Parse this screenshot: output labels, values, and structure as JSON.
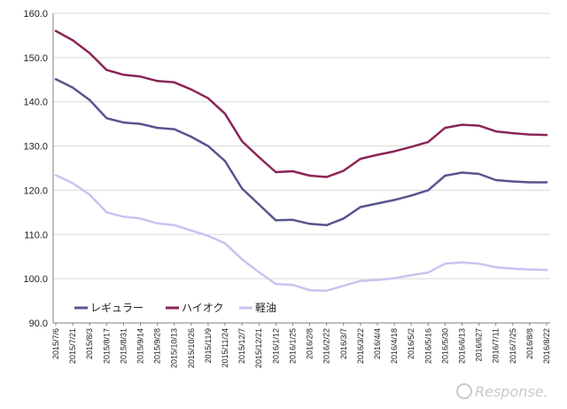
{
  "chart_data": {
    "type": "line",
    "title": "",
    "xlabel": "",
    "ylabel": "",
    "ylim": [
      90.0,
      160.0
    ],
    "yticks": [
      "90.0",
      "100.0",
      "110.0",
      "120.0",
      "130.0",
      "140.0",
      "150.0",
      "160.0"
    ],
    "grid": "horizontal",
    "legend_position": "bottom-left",
    "categories": [
      "2015/7/6",
      "2015/7/21",
      "2015/8/3",
      "2015/8/17",
      "2015/8/31",
      "2015/9/14",
      "2015/9/28",
      "2015/10/13",
      "2015/10/26",
      "2015/11/9",
      "2015/11/24",
      "2015/12/7",
      "2015/12/21",
      "2016/1/12",
      "2016/1/25",
      "2016/2/8",
      "2016/2/22",
      "2016/3/7",
      "2016/3/22",
      "2016/4/4",
      "2016/4/18",
      "2016/5/2",
      "2016/5/16",
      "2016/5/30",
      "2016/6/13",
      "2016/627",
      "2016/7/11",
      "2016/7/25",
      "2016/8/8",
      "2016/8/22"
    ],
    "series": [
      {
        "name": "レギュラー",
        "color": "#56558f",
        "values": [
          145.1,
          143.2,
          140.4,
          136.3,
          135.3,
          135.0,
          134.1,
          133.8,
          132.1,
          130.0,
          126.6,
          120.4,
          116.8,
          113.2,
          113.3,
          112.4,
          112.1,
          113.6,
          116.2,
          117.0,
          117.8,
          118.8,
          120.0,
          123.3,
          124.0,
          123.7,
          122.3,
          122.0,
          121.8,
          121.8
        ]
      },
      {
        "name": "ハイオク",
        "color": "#8b2557",
        "values": [
          156.0,
          153.9,
          151.0,
          147.2,
          146.1,
          145.7,
          144.7,
          144.4,
          142.8,
          140.8,
          137.3,
          131.1,
          127.5,
          124.1,
          124.3,
          123.3,
          123.0,
          124.4,
          127.1,
          128.0,
          128.8,
          129.8,
          130.9,
          134.1,
          134.8,
          134.6,
          133.3,
          132.9,
          132.6,
          132.5
        ]
      },
      {
        "name": "軽油",
        "color": "#c5c5f2",
        "values": [
          123.4,
          121.6,
          119.0,
          115.0,
          114.0,
          113.6,
          112.5,
          112.1,
          110.9,
          109.7,
          108.0,
          104.4,
          101.5,
          98.8,
          98.6,
          97.4,
          97.3,
          98.4,
          99.5,
          99.7,
          100.1,
          100.8,
          101.4,
          103.4,
          103.7,
          103.4,
          102.6,
          102.3,
          102.1,
          102.0
        ]
      }
    ]
  },
  "watermark": {
    "text": "Response."
  }
}
